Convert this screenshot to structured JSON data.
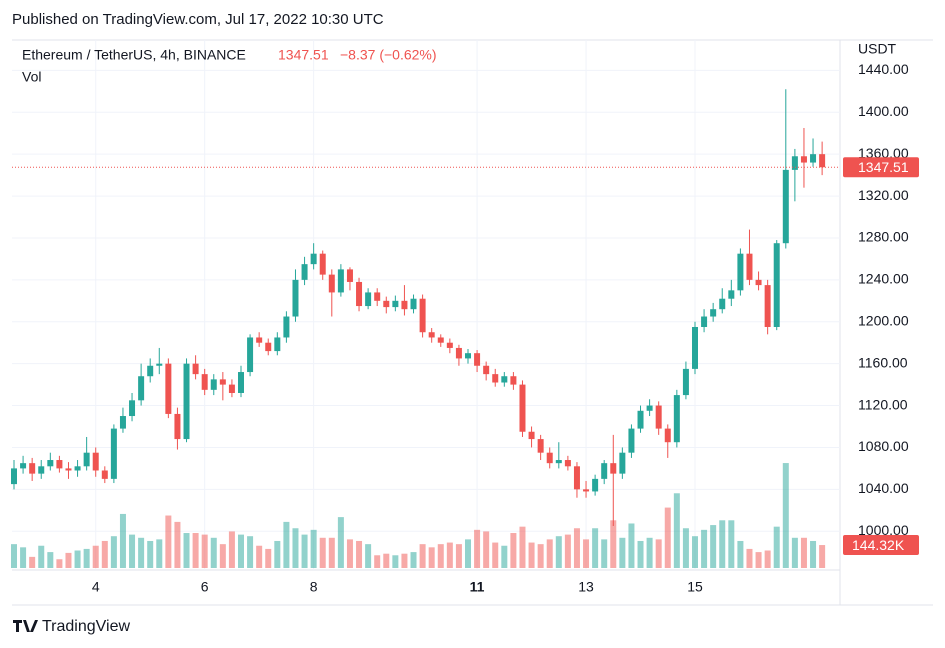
{
  "header": {
    "published": "Published on TradingView.com, Jul 17, 2022 10:30 UTC",
    "logo": "TradingView"
  },
  "chart_data": {
    "type": "candlestick",
    "title": "Ethereum / TetherUS, 4h, BINANCE",
    "change": "−8.37 (−0.62%)",
    "volume_title": "Vol",
    "y_axis_label": "USDT",
    "up_color": "#26a69a",
    "down_color": "#ef5350",
    "grid": true,
    "categories": [
      null,
      null,
      null,
      null,
      null,
      null,
      null,
      null,
      null,
      "4",
      null,
      null,
      null,
      null,
      null,
      null,
      null,
      null,
      null,
      null,
      null,
      "6",
      null,
      null,
      null,
      null,
      null,
      null,
      null,
      null,
      null,
      null,
      null,
      "8",
      null,
      null,
      null,
      null,
      null,
      null,
      null,
      null,
      null,
      null,
      null,
      null,
      null,
      null,
      null,
      null,
      null,
      "11",
      null,
      null,
      null,
      null,
      null,
      null,
      null,
      null,
      null,
      null,
      null,
      "13",
      null,
      null,
      null,
      null,
      null,
      null,
      null,
      null,
      null,
      null,
      null,
      "15",
      null,
      null,
      null,
      null,
      null,
      null,
      null,
      null,
      null,
      null,
      null,
      null,
      null,
      null
    ],
    "open": [
      1045,
      1060,
      1065,
      1055,
      1062,
      1068,
      1060,
      1058,
      1062,
      1075,
      1058,
      1050,
      1098,
      1110,
      1125,
      1148,
      1158,
      1160,
      1112,
      1088,
      1160,
      1150,
      1135,
      1145,
      1140,
      1132,
      1152,
      1185,
      1180,
      1172,
      1185,
      1205,
      1240,
      1255,
      1265,
      1245,
      1228,
      1250,
      1238,
      1215,
      1228,
      1220,
      1214,
      1220,
      1212,
      1222,
      1190,
      1185,
      1180,
      1175,
      1165,
      1170,
      1158,
      1150,
      1142,
      1148,
      1140,
      1095,
      1088,
      1075,
      1065,
      1068,
      1062,
      1040,
      1038,
      1050,
      1065,
      1055,
      1075,
      1098,
      1115,
      1120,
      1098,
      1085,
      1130,
      1155,
      1195,
      1205,
      1212,
      1222,
      1230,
      1265,
      1240,
      1235,
      1195,
      1275,
      1345,
      1358,
      1352,
      1360
    ],
    "high": [
      1068,
      1072,
      1070,
      1068,
      1075,
      1072,
      1066,
      1068,
      1090,
      1080,
      1062,
      1102,
      1118,
      1132,
      1160,
      1165,
      1175,
      1165,
      1118,
      1165,
      1168,
      1155,
      1150,
      1152,
      1145,
      1158,
      1188,
      1190,
      1184,
      1190,
      1210,
      1250,
      1262,
      1275,
      1268,
      1250,
      1255,
      1252,
      1242,
      1232,
      1232,
      1224,
      1225,
      1235,
      1226,
      1226,
      1194,
      1188,
      1184,
      1178,
      1174,
      1173,
      1162,
      1155,
      1152,
      1152,
      1144,
      1100,
      1092,
      1080,
      1085,
      1072,
      1066,
      1048,
      1054,
      1068,
      1092,
      1080,
      1102,
      1120,
      1126,
      1124,
      1102,
      1135,
      1162,
      1200,
      1212,
      1218,
      1232,
      1240,
      1270,
      1288,
      1248,
      1240,
      1278,
      1422,
      1365,
      1385,
      1375,
      1372
    ],
    "low": [
      1040,
      1055,
      1048,
      1050,
      1058,
      1056,
      1050,
      1052,
      1058,
      1052,
      1046,
      1046,
      1094,
      1105,
      1120,
      1142,
      1150,
      1108,
      1078,
      1085,
      1145,
      1130,
      1130,
      1125,
      1128,
      1128,
      1148,
      1176,
      1168,
      1168,
      1180,
      1200,
      1235,
      1250,
      1240,
      1205,
      1224,
      1230,
      1210,
      1212,
      1215,
      1208,
      1210,
      1206,
      1208,
      1185,
      1180,
      1176,
      1170,
      1158,
      1160,
      1152,
      1144,
      1138,
      1138,
      1135,
      1090,
      1080,
      1068,
      1060,
      1060,
      1058,
      1032,
      1032,
      1034,
      1045,
      1005,
      1050,
      1070,
      1094,
      1110,
      1092,
      1070,
      1080,
      1126,
      1150,
      1190,
      1200,
      1208,
      1215,
      1225,
      1235,
      1230,
      1188,
      1192,
      1270,
      1315,
      1328,
      1348,
      1340
    ],
    "close": [
      1060,
      1065,
      1055,
      1062,
      1068,
      1060,
      1058,
      1062,
      1075,
      1058,
      1050,
      1098,
      1110,
      1125,
      1148,
      1158,
      1160,
      1112,
      1088,
      1160,
      1150,
      1135,
      1145,
      1140,
      1132,
      1152,
      1185,
      1180,
      1172,
      1185,
      1205,
      1240,
      1255,
      1265,
      1245,
      1228,
      1250,
      1238,
      1215,
      1228,
      1220,
      1214,
      1220,
      1212,
      1222,
      1190,
      1185,
      1180,
      1175,
      1165,
      1170,
      1158,
      1150,
      1142,
      1148,
      1140,
      1095,
      1088,
      1075,
      1065,
      1068,
      1062,
      1040,
      1038,
      1050,
      1065,
      1055,
      1075,
      1098,
      1115,
      1120,
      1098,
      1085,
      1130,
      1155,
      1195,
      1205,
      1212,
      1222,
      1230,
      1265,
      1240,
      1235,
      1195,
      1275,
      1345,
      1358,
      1352,
      1360,
      1347.51
    ],
    "volume": [
      150,
      130,
      70,
      140,
      100,
      55,
      95,
      110,
      120,
      140,
      170,
      200,
      340,
      210,
      190,
      170,
      180,
      330,
      290,
      220,
      220,
      210,
      190,
      150,
      230,
      210,
      200,
      140,
      120,
      170,
      290,
      250,
      210,
      240,
      190,
      190,
      320,
      180,
      170,
      150,
      80,
      90,
      80,
      90,
      100,
      150,
      130,
      150,
      160,
      150,
      180,
      240,
      230,
      160,
      140,
      220,
      260,
      160,
      150,
      180,
      200,
      210,
      250,
      180,
      250,
      180,
      300,
      190,
      280,
      170,
      190,
      180,
      380,
      470,
      250,
      200,
      240,
      270,
      300,
      300,
      170,
      120,
      100,
      110,
      260,
      660,
      190,
      190,
      170,
      144.32
    ],
    "volume_tag": "144.32K",
    "ylim": [
      963,
      1469
    ],
    "yticks": [
      {
        "value": 1000,
        "label": "1000.00"
      },
      {
        "value": 1040,
        "label": "1040.00"
      },
      {
        "value": 1080,
        "label": "1080.00"
      },
      {
        "value": 1120,
        "label": "1120.00"
      },
      {
        "value": 1160,
        "label": "1160.00"
      },
      {
        "value": 1200,
        "label": "1200.00"
      },
      {
        "value": 1240,
        "label": "1240.00"
      },
      {
        "value": 1280,
        "label": "1280.00"
      },
      {
        "value": 1320,
        "label": "1320.00"
      },
      {
        "value": 1360,
        "label": "1360.00"
      },
      {
        "value": 1400,
        "label": "1400.00"
      },
      {
        "value": 1440,
        "label": "1440.00"
      }
    ]
  }
}
